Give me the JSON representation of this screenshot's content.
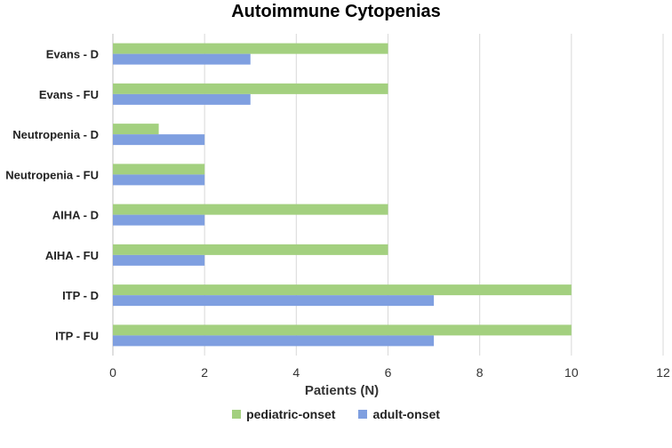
{
  "chart_data": {
    "type": "bar",
    "orientation": "horizontal",
    "title": "Autoimmune Cytopenias",
    "xlabel": "Patients (N)",
    "ylabel": "",
    "xlim": [
      0,
      12
    ],
    "x_ticks": [
      0,
      2,
      4,
      6,
      8,
      10,
      12
    ],
    "grid": true,
    "legend_position": "bottom",
    "categories": [
      "Evans - D",
      "Evans - FU",
      "Neutropenia - D",
      "Neutropenia - FU",
      "AIHA - D",
      "AIHA - FU",
      "ITP - D",
      "ITP - FU"
    ],
    "series": [
      {
        "name": "pediatric-onset",
        "color": "#a3d07f",
        "values": [
          6,
          6,
          1,
          2,
          6,
          6,
          10,
          10
        ]
      },
      {
        "name": "adult-onset",
        "color": "#7f9fe0",
        "values": [
          3,
          3,
          2,
          2,
          2,
          2,
          7,
          7
        ]
      }
    ]
  }
}
